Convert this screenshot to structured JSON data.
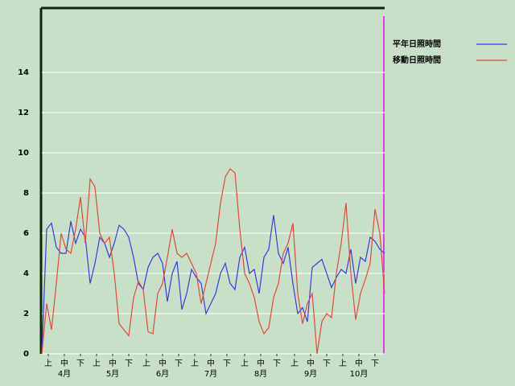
{
  "chart_data": {
    "type": "line",
    "x": [
      0,
      3,
      6,
      9,
      12,
      15,
      18,
      21,
      24,
      27,
      30,
      33,
      36,
      39,
      42,
      45,
      48,
      51,
      54,
      57,
      60,
      63,
      66,
      69,
      72,
      75,
      78,
      81,
      84,
      87,
      90,
      93,
      96,
      99,
      102,
      105,
      108,
      111,
      114,
      117,
      120,
      123,
      126,
      129,
      132,
      135,
      138,
      141,
      144,
      147,
      150,
      153,
      156,
      159,
      162,
      165,
      168,
      171,
      174,
      177,
      180,
      183,
      186,
      189,
      192,
      195,
      198,
      201,
      204,
      207,
      210,
      213
    ],
    "series": [
      {
        "name": "平年日照時間",
        "color": "#3a3ae0",
        "values": [
          0,
          6.2,
          6.5,
          5.3,
          5.0,
          5.0,
          6.6,
          5.5,
          6.2,
          5.8,
          3.5,
          4.5,
          5.8,
          5.5,
          4.8,
          5.5,
          6.4,
          6.2,
          5.8,
          4.8,
          3.5,
          3.2,
          4.3,
          4.8,
          5.0,
          4.5,
          2.6,
          4.0,
          4.6,
          2.2,
          3.0,
          4.2,
          3.8,
          3.5,
          2.0,
          2.5,
          3.0,
          4.0,
          4.5,
          3.5,
          3.2,
          4.8,
          5.3,
          4.0,
          4.2,
          3.0,
          4.8,
          5.2,
          6.9,
          5.0,
          4.5,
          5.3,
          3.5,
          2.0,
          2.3,
          1.6,
          4.3,
          4.5,
          4.7,
          4.0,
          3.3,
          3.8,
          4.2,
          4.0,
          5.2,
          3.5,
          4.8,
          4.6,
          5.8,
          5.6,
          5.2,
          5.0
        ]
      },
      {
        "name": "移動日照時間",
        "color": "#e04a3a",
        "values": [
          0,
          2.5,
          1.2,
          3.5,
          6.0,
          5.2,
          5.0,
          6.2,
          7.8,
          5.5,
          8.7,
          8.3,
          6.0,
          5.5,
          5.8,
          4.0,
          1.5,
          1.2,
          0.9,
          2.8,
          3.6,
          3.2,
          1.1,
          1.0,
          3.0,
          3.5,
          4.8,
          6.2,
          5.0,
          4.8,
          5.0,
          4.5,
          4.0,
          2.5,
          3.5,
          4.5,
          5.5,
          7.5,
          8.8,
          9.2,
          9.0,
          6.2,
          4.0,
          3.5,
          2.8,
          1.6,
          1.0,
          1.3,
          2.8,
          3.5,
          5.0,
          5.5,
          6.5,
          3.0,
          1.5,
          2.5,
          3.0,
          0.0,
          1.6,
          2.0,
          1.8,
          4.0,
          5.5,
          7.5,
          4.0,
          1.7,
          3.0,
          3.7,
          4.5,
          7.2,
          6.0,
          3.0
        ]
      }
    ],
    "xlim": [
      0,
      213
    ],
    "xticks": [
      {
        "value": 4,
        "label": "上"
      },
      {
        "value": 14,
        "label": "中"
      },
      {
        "value": 24,
        "label": "下"
      },
      {
        "value": 34,
        "label": "上"
      },
      {
        "value": 44,
        "label": "中"
      },
      {
        "value": 54,
        "label": "下"
      },
      {
        "value": 65,
        "label": "上"
      },
      {
        "value": 75,
        "label": "中"
      },
      {
        "value": 85,
        "label": "下"
      },
      {
        "value": 95,
        "label": "上"
      },
      {
        "value": 105,
        "label": "中"
      },
      {
        "value": 115,
        "label": "下"
      },
      {
        "value": 126,
        "label": "上"
      },
      {
        "value": 136,
        "label": "中"
      },
      {
        "value": 146,
        "label": "下"
      },
      {
        "value": 157,
        "label": "上"
      },
      {
        "value": 167,
        "label": "中"
      },
      {
        "value": 177,
        "label": "下"
      },
      {
        "value": 187,
        "label": "上"
      },
      {
        "value": 197,
        "label": "中"
      },
      {
        "value": 207,
        "label": "下"
      }
    ],
    "month_labels": [
      "4月",
      "5月",
      "6月",
      "7月",
      "8月",
      "9月",
      "10月"
    ],
    "ylim": [
      0,
      17.2
    ],
    "yticks": [
      0,
      2,
      4,
      6,
      8,
      10,
      12,
      14
    ],
    "grid": true
  }
}
